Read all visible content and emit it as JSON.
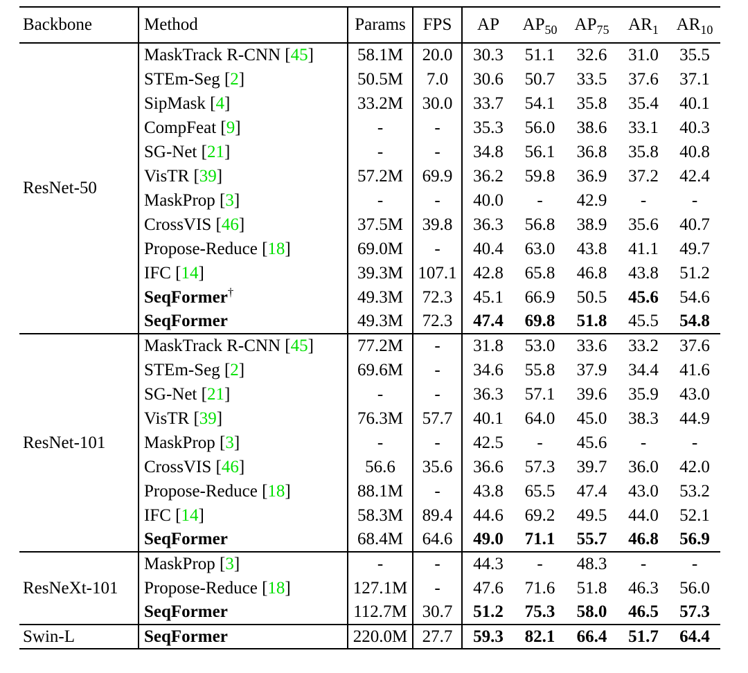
{
  "page": {
    "background": "#ffffff",
    "text_color": "#000000",
    "citation_color": "#00e000",
    "rule_color": "#000000"
  },
  "table": {
    "header": {
      "backbone": "Backbone",
      "method": "Method",
      "params": "Params",
      "fps": "FPS",
      "metrics": [
        {
          "base": "AP",
          "sub": ""
        },
        {
          "base": "AP",
          "sub": "50"
        },
        {
          "base": "AP",
          "sub": "75"
        },
        {
          "base": "AR",
          "sub": "1"
        },
        {
          "base": "AR",
          "sub": "10"
        }
      ]
    },
    "sections": [
      {
        "backbone": "ResNet-50",
        "rows": [
          {
            "method": "MaskTrack R-CNN",
            "cite": "45",
            "dagger": "",
            "bold_method": false,
            "params": "58.1M",
            "fps": "20.0",
            "metrics": [
              "30.3",
              "51.1",
              "32.6",
              "31.0",
              "35.5"
            ],
            "bold": [
              false,
              false,
              false,
              false,
              false
            ]
          },
          {
            "method": "STEm-Seg",
            "cite": "2",
            "dagger": "",
            "bold_method": false,
            "params": "50.5M",
            "fps": "7.0",
            "metrics": [
              "30.6",
              "50.7",
              "33.5",
              "37.6",
              "37.1"
            ],
            "bold": [
              false,
              false,
              false,
              false,
              false
            ]
          },
          {
            "method": "SipMask",
            "cite": "4",
            "dagger": "",
            "bold_method": false,
            "params": "33.2M",
            "fps": "30.0",
            "metrics": [
              "33.7",
              "54.1",
              "35.8",
              "35.4",
              "40.1"
            ],
            "bold": [
              false,
              false,
              false,
              false,
              false
            ]
          },
          {
            "method": "CompFeat",
            "cite": "9",
            "dagger": "",
            "bold_method": false,
            "params": "-",
            "fps": "-",
            "metrics": [
              "35.3",
              "56.0",
              "38.6",
              "33.1",
              "40.3"
            ],
            "bold": [
              false,
              false,
              false,
              false,
              false
            ]
          },
          {
            "method": "SG-Net",
            "cite": "21",
            "dagger": "",
            "bold_method": false,
            "params": "-",
            "fps": "-",
            "metrics": [
              "34.8",
              "56.1",
              "36.8",
              "35.8",
              "40.8"
            ],
            "bold": [
              false,
              false,
              false,
              false,
              false
            ]
          },
          {
            "method": "VisTR",
            "cite": "39",
            "dagger": "",
            "bold_method": false,
            "params": "57.2M",
            "fps": "69.9",
            "metrics": [
              "36.2",
              "59.8",
              "36.9",
              "37.2",
              "42.4"
            ],
            "bold": [
              false,
              false,
              false,
              false,
              false
            ]
          },
          {
            "method": "MaskProp",
            "cite": "3",
            "dagger": "",
            "bold_method": false,
            "params": "-",
            "fps": "-",
            "metrics": [
              "40.0",
              "-",
              "42.9",
              "-",
              "-"
            ],
            "bold": [
              false,
              false,
              false,
              false,
              false
            ]
          },
          {
            "method": "CrossVIS",
            "cite": "46",
            "dagger": "",
            "bold_method": false,
            "params": "37.5M",
            "fps": "39.8",
            "metrics": [
              "36.3",
              "56.8",
              "38.9",
              "35.6",
              "40.7"
            ],
            "bold": [
              false,
              false,
              false,
              false,
              false
            ]
          },
          {
            "method": "Propose-Reduce",
            "cite": "18",
            "dagger": "",
            "bold_method": false,
            "params": "69.0M",
            "fps": "-",
            "metrics": [
              "40.4",
              "63.0",
              "43.8",
              "41.1",
              "49.7"
            ],
            "bold": [
              false,
              false,
              false,
              false,
              false
            ]
          },
          {
            "method": "IFC",
            "cite": "14",
            "dagger": "",
            "bold_method": false,
            "params": "39.3M",
            "fps": "107.1",
            "metrics": [
              "42.8",
              "65.8",
              "46.8",
              "43.8",
              "51.2"
            ],
            "bold": [
              false,
              false,
              false,
              false,
              false
            ]
          },
          {
            "method": "SeqFormer",
            "cite": "",
            "dagger": "†",
            "bold_method": true,
            "params": "49.3M",
            "fps": "72.3",
            "metrics": [
              "45.1",
              "66.9",
              "50.5",
              "45.6",
              "54.6"
            ],
            "bold": [
              false,
              false,
              false,
              true,
              false
            ]
          },
          {
            "method": "SeqFormer",
            "cite": "",
            "dagger": "",
            "bold_method": true,
            "params": "49.3M",
            "fps": "72.3",
            "metrics": [
              "47.4",
              "69.8",
              "51.8",
              "45.5",
              "54.8"
            ],
            "bold": [
              true,
              true,
              true,
              false,
              true
            ]
          }
        ]
      },
      {
        "backbone": "ResNet-101",
        "rows": [
          {
            "method": "MaskTrack R-CNN",
            "cite": "45",
            "dagger": "",
            "bold_method": false,
            "params": "77.2M",
            "fps": "-",
            "metrics": [
              "31.8",
              "53.0",
              "33.6",
              "33.2",
              "37.6"
            ],
            "bold": [
              false,
              false,
              false,
              false,
              false
            ]
          },
          {
            "method": "STEm-Seg",
            "cite": "2",
            "dagger": "",
            "bold_method": false,
            "params": "69.6M",
            "fps": "-",
            "metrics": [
              "34.6",
              "55.8",
              "37.9",
              "34.4",
              "41.6"
            ],
            "bold": [
              false,
              false,
              false,
              false,
              false
            ]
          },
          {
            "method": "SG-Net",
            "cite": "21",
            "dagger": "",
            "bold_method": false,
            "params": "-",
            "fps": "-",
            "metrics": [
              "36.3",
              "57.1",
              "39.6",
              "35.9",
              "43.0"
            ],
            "bold": [
              false,
              false,
              false,
              false,
              false
            ]
          },
          {
            "method": "VisTR",
            "cite": "39",
            "dagger": "",
            "bold_method": false,
            "params": "76.3M",
            "fps": "57.7",
            "metrics": [
              "40.1",
              "64.0",
              "45.0",
              "38.3",
              "44.9"
            ],
            "bold": [
              false,
              false,
              false,
              false,
              false
            ]
          },
          {
            "method": "MaskProp",
            "cite": "3",
            "dagger": "",
            "bold_method": false,
            "params": "-",
            "fps": "-",
            "metrics": [
              "42.5",
              "-",
              "45.6",
              "-",
              "-"
            ],
            "bold": [
              false,
              false,
              false,
              false,
              false
            ]
          },
          {
            "method": "CrossVIS",
            "cite": "46",
            "dagger": "",
            "bold_method": false,
            "params": "56.6",
            "fps": "35.6",
            "metrics": [
              "36.6",
              "57.3",
              "39.7",
              "36.0",
              "42.0"
            ],
            "bold": [
              false,
              false,
              false,
              false,
              false
            ]
          },
          {
            "method": "Propose-Reduce",
            "cite": "18",
            "dagger": "",
            "bold_method": false,
            "params": "88.1M",
            "fps": "-",
            "metrics": [
              "43.8",
              "65.5",
              "47.4",
              "43.0",
              "53.2"
            ],
            "bold": [
              false,
              false,
              false,
              false,
              false
            ]
          },
          {
            "method": "IFC",
            "cite": "14",
            "dagger": "",
            "bold_method": false,
            "params": "58.3M",
            "fps": "89.4",
            "metrics": [
              "44.6",
              "69.2",
              "49.5",
              "44.0",
              "52.1"
            ],
            "bold": [
              false,
              false,
              false,
              false,
              false
            ]
          },
          {
            "method": "SeqFormer",
            "cite": "",
            "dagger": "",
            "bold_method": true,
            "params": "68.4M",
            "fps": "64.6",
            "metrics": [
              "49.0",
              "71.1",
              "55.7",
              "46.8",
              "56.9"
            ],
            "bold": [
              true,
              true,
              true,
              true,
              true
            ]
          }
        ]
      },
      {
        "backbone": "ResNeXt-101",
        "rows": [
          {
            "method": "MaskProp",
            "cite": "3",
            "dagger": "",
            "bold_method": false,
            "params": "-",
            "fps": "-",
            "metrics": [
              "44.3",
              "-",
              "48.3",
              "-",
              "-"
            ],
            "bold": [
              false,
              false,
              false,
              false,
              false
            ]
          },
          {
            "method": "Propose-Reduce",
            "cite": "18",
            "dagger": "",
            "bold_method": false,
            "params": "127.1M",
            "fps": "-",
            "metrics": [
              "47.6",
              "71.6",
              "51.8",
              "46.3",
              "56.0"
            ],
            "bold": [
              false,
              false,
              false,
              false,
              false
            ]
          },
          {
            "method": "SeqFormer",
            "cite": "",
            "dagger": "",
            "bold_method": true,
            "params": "112.7M",
            "fps": "30.7",
            "metrics": [
              "51.2",
              "75.3",
              "58.0",
              "46.5",
              "57.3"
            ],
            "bold": [
              true,
              true,
              true,
              true,
              true
            ]
          }
        ]
      },
      {
        "backbone": "Swin-L",
        "rows": [
          {
            "method": "SeqFormer",
            "cite": "",
            "dagger": "",
            "bold_method": true,
            "params": "220.0M",
            "fps": "27.7",
            "metrics": [
              "59.3",
              "82.1",
              "66.4",
              "51.7",
              "64.4"
            ],
            "bold": [
              true,
              true,
              true,
              true,
              true
            ]
          }
        ]
      }
    ]
  }
}
